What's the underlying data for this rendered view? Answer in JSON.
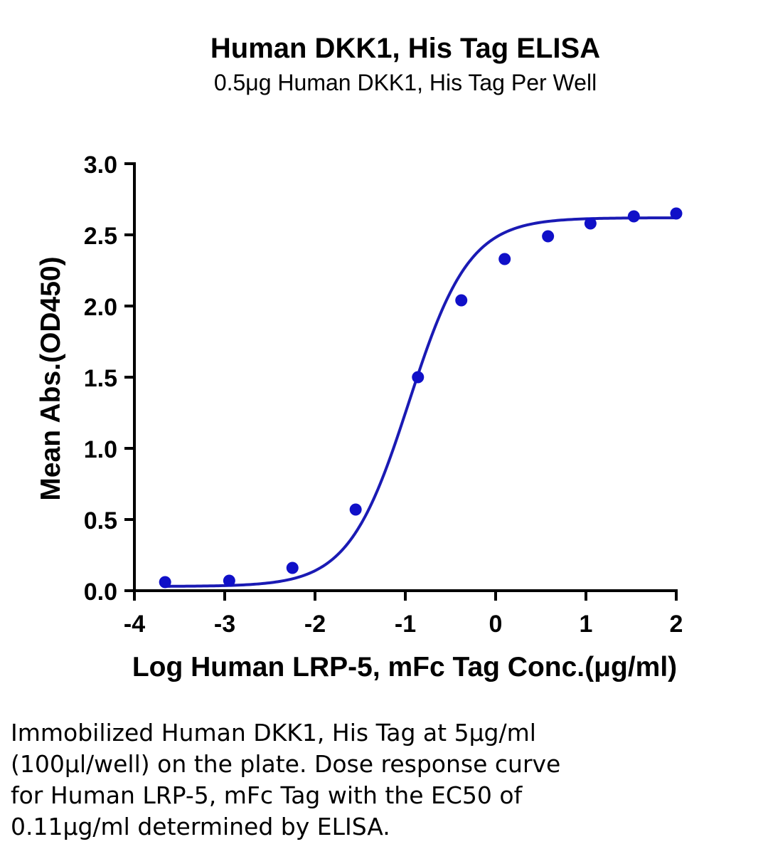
{
  "chart_data": {
    "type": "scatter",
    "title": "Human DKK1, His Tag ELISA",
    "subtitle": "0.5μg Human DKK1, His Tag Per Well",
    "xlabel": "Log Human LRP-5, mFc Tag Conc.(μg/ml)",
    "ylabel": "Mean Abs.(OD450)",
    "xlim": [
      -4,
      2
    ],
    "ylim": [
      0,
      3
    ],
    "x_ticks": [
      -4,
      -3,
      -2,
      -1,
      0,
      1,
      2
    ],
    "x_tick_labels": [
      "-4",
      "-3",
      "-2",
      "-1",
      "0",
      "1",
      "2"
    ],
    "y_ticks": [
      0,
      0.5,
      1,
      1.5,
      2,
      2.5,
      3
    ],
    "y_tick_labels": [
      "0.0",
      "0.5",
      "1.0",
      "1.5",
      "2.0",
      "2.5",
      "3.0"
    ],
    "grid": false,
    "series": [
      {
        "color": "#1010c8",
        "x": [
          -3.66,
          -2.95,
          -2.25,
          -1.55,
          -0.86,
          -0.38,
          0.1,
          0.58,
          1.05,
          1.53,
          2.0
        ],
        "y": [
          0.06,
          0.07,
          0.16,
          0.57,
          1.5,
          2.04,
          2.33,
          2.49,
          2.58,
          2.63,
          2.65
        ]
      }
    ],
    "fit_curve": {
      "model": "4PL",
      "bottom": 0.03,
      "top": 2.62,
      "log_ec50": -0.96,
      "hill_slope": 1.3,
      "x_range": [
        -3.66,
        2.0
      ],
      "color": "#1a1ab4"
    }
  },
  "caption_lines": [
    "Immobilized Human DKK1, His Tag at 5μg/ml",
    "(100μl/well) on the plate. Dose response curve",
    "for Human LRP-5, mFc Tag with the EC50 of",
    "0.11μg/ml determined by ELISA."
  ]
}
